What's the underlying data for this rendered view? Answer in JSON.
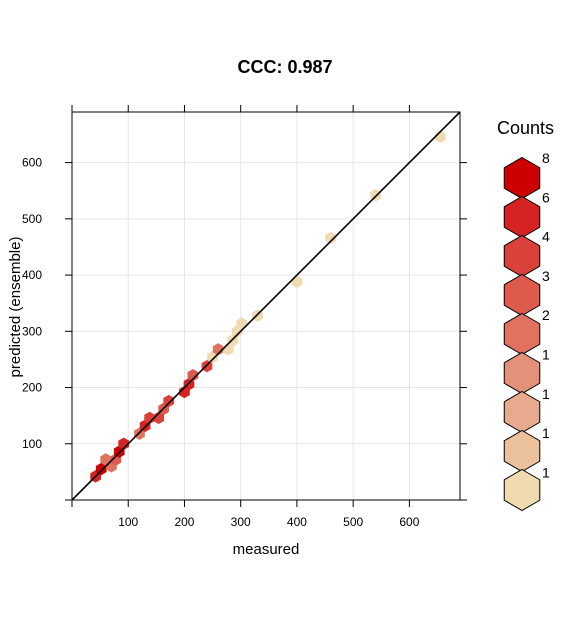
{
  "chart_data": {
    "type": "hexbin",
    "title": "CCC: 0.987",
    "xlabel": "measured",
    "ylabel": "predicted (ensemble)",
    "xlim": [
      0,
      690
    ],
    "ylim": [
      0,
      690
    ],
    "x_ticks": [
      100,
      200,
      300,
      400,
      500,
      600
    ],
    "y_ticks": [
      100,
      200,
      300,
      400,
      500,
      600
    ],
    "grid": true,
    "reference_line": "1:1",
    "legend": {
      "title": "Counts",
      "placement": "right",
      "levels": [
        {
          "label": "8",
          "color": "#cc0000"
        },
        {
          "label": "6",
          "color": "#d52323"
        },
        {
          "label": "4",
          "color": "#d9413a"
        },
        {
          "label": "3",
          "color": "#dd5a4d"
        },
        {
          "label": "2",
          "color": "#e1725f"
        },
        {
          "label": "1",
          "color": "#e4917a"
        },
        {
          "label": "1",
          "color": "#e8aa8e"
        },
        {
          "label": "1",
          "color": "#ecc29d"
        },
        {
          "label": "1",
          "color": "#f0dab0"
        }
      ]
    },
    "hexbins": [
      {
        "x": 42,
        "y": 42,
        "count": 6
      },
      {
        "x": 52,
        "y": 55,
        "count": 8
      },
      {
        "x": 60,
        "y": 72,
        "count": 2
      },
      {
        "x": 70,
        "y": 60,
        "count": 2
      },
      {
        "x": 78,
        "y": 72,
        "count": 3
      },
      {
        "x": 84,
        "y": 86,
        "count": 8
      },
      {
        "x": 92,
        "y": 100,
        "count": 6
      },
      {
        "x": 120,
        "y": 118,
        "count": 2
      },
      {
        "x": 130,
        "y": 132,
        "count": 6
      },
      {
        "x": 138,
        "y": 146,
        "count": 4
      },
      {
        "x": 154,
        "y": 146,
        "count": 4
      },
      {
        "x": 163,
        "y": 162,
        "count": 3
      },
      {
        "x": 172,
        "y": 176,
        "count": 4
      },
      {
        "x": 200,
        "y": 192,
        "count": 6
      },
      {
        "x": 208,
        "y": 206,
        "count": 6
      },
      {
        "x": 215,
        "y": 222,
        "count": 3
      },
      {
        "x": 240,
        "y": 238,
        "count": 4
      },
      {
        "x": 250,
        "y": 254,
        "count": 1
      },
      {
        "x": 260,
        "y": 268,
        "count": 2
      },
      {
        "x": 278,
        "y": 268,
        "count": 1
      },
      {
        "x": 286,
        "y": 284,
        "count": 1
      },
      {
        "x": 294,
        "y": 300,
        "count": 1
      },
      {
        "x": 302,
        "y": 314,
        "count": 1
      },
      {
        "x": 330,
        "y": 328,
        "count": 1
      },
      {
        "x": 400,
        "y": 388,
        "count": 1
      },
      {
        "x": 460,
        "y": 466,
        "count": 1
      },
      {
        "x": 540,
        "y": 542,
        "count": 1
      },
      {
        "x": 655,
        "y": 646,
        "count": 1
      }
    ]
  }
}
